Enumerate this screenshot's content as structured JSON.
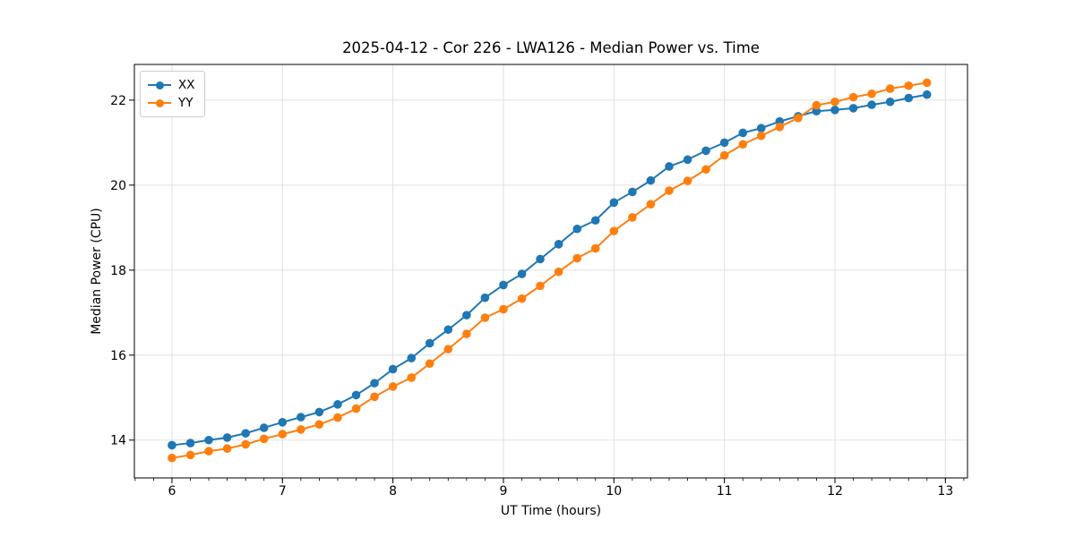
{
  "chart_data": {
    "type": "line",
    "title": "2025-04-12 - Cor 226 - LWA126 - Median Power vs. Time",
    "xlabel": "UT Time (hours)",
    "ylabel": "Median Power (CPU)",
    "xlim": [
      5.66,
      13.2
    ],
    "ylim": [
      13.11,
      22.84
    ],
    "x_ticks": [
      6,
      7,
      8,
      9,
      10,
      11,
      12,
      13
    ],
    "y_ticks": [
      14,
      16,
      18,
      20,
      22
    ],
    "x_minor_tick_step": 0.166667,
    "grid": true,
    "legend_position": "upper-left",
    "background": "#ffffff",
    "grid_color": "#e0e0e0",
    "x": [
      6.0,
      6.167,
      6.333,
      6.5,
      6.667,
      6.833,
      7.0,
      7.167,
      7.333,
      7.5,
      7.667,
      7.833,
      8.0,
      8.167,
      8.333,
      8.5,
      8.667,
      8.833,
      9.0,
      9.167,
      9.333,
      9.5,
      9.667,
      9.833,
      10.0,
      10.167,
      10.333,
      10.5,
      10.667,
      10.833,
      11.0,
      11.167,
      11.333,
      11.5,
      11.667,
      11.833,
      12.0,
      12.167,
      12.333,
      12.5,
      12.667,
      12.833
    ],
    "series": [
      {
        "name": "XX",
        "color": "#1f77b4",
        "values": [
          13.88,
          13.93,
          14.0,
          14.06,
          14.16,
          14.29,
          14.42,
          14.54,
          14.66,
          14.84,
          15.06,
          15.34,
          15.67,
          15.93,
          16.28,
          16.6,
          16.94,
          17.35,
          17.65,
          17.91,
          18.26,
          18.61,
          18.97,
          19.17,
          19.59,
          19.84,
          20.11,
          20.44,
          20.6,
          20.81,
          21.0,
          21.23,
          21.34,
          21.5,
          21.62,
          21.74,
          21.77,
          21.81,
          21.89,
          21.96,
          22.05,
          22.13
        ]
      },
      {
        "name": "YY",
        "color": "#ff7f0e",
        "values": [
          13.58,
          13.65,
          13.74,
          13.8,
          13.9,
          14.03,
          14.14,
          14.25,
          14.37,
          14.53,
          14.74,
          15.02,
          15.26,
          15.47,
          15.8,
          16.14,
          16.5,
          16.88,
          17.08,
          17.33,
          17.63,
          17.96,
          18.28,
          18.51,
          18.92,
          19.24,
          19.55,
          19.87,
          20.1,
          20.37,
          20.7,
          20.96,
          21.16,
          21.37,
          21.58,
          21.88,
          21.96,
          22.07,
          22.15,
          22.27,
          22.34,
          22.41
        ]
      }
    ]
  }
}
